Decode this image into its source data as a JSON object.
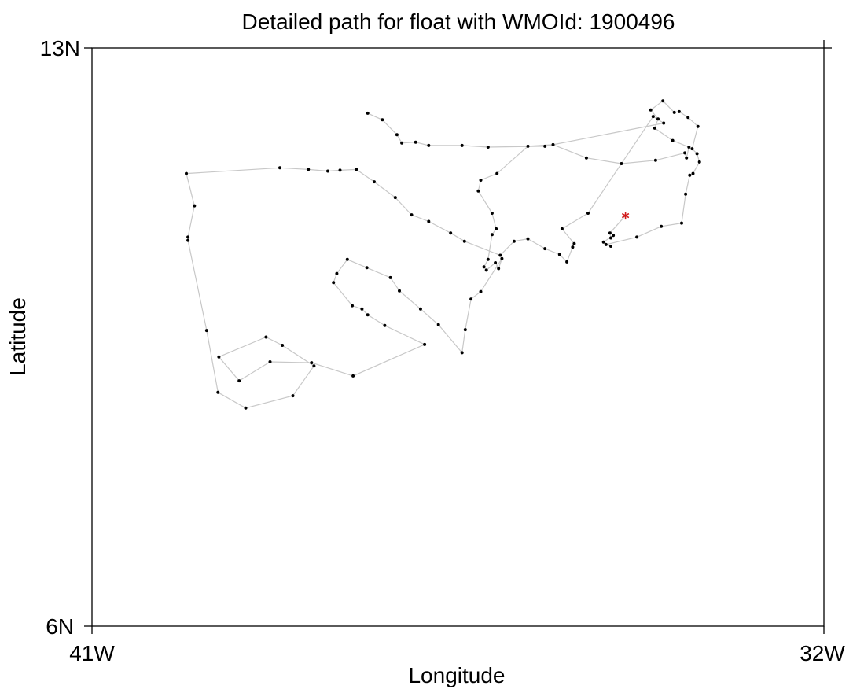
{
  "chart_data": {
    "type": "scatter",
    "title": "Detailed path for float with WMOId: 1900496",
    "xlabel": "Longitude",
    "ylabel": "Latitude",
    "xlim": [
      -41,
      -32
    ],
    "ylim": [
      6,
      13
    ],
    "x_tick_labels": [
      {
        "value": -41,
        "label": "41W"
      },
      {
        "value": -32,
        "label": "32W"
      }
    ],
    "y_tick_labels": [
      {
        "value": 13,
        "label": "13N"
      },
      {
        "value": 6,
        "label": "6N"
      }
    ],
    "grid": false,
    "legend": null,
    "colors": {
      "path": "#c8c8c8",
      "points": "#000000",
      "start_marker": "#d11a1a"
    },
    "start_marker": "asterisk",
    "path": [
      [
        -34.44,
        10.97
      ],
      [
        -34.63,
        10.76
      ],
      [
        -34.62,
        10.7
      ],
      [
        -34.59,
        10.73
      ],
      [
        -34.71,
        10.65
      ],
      [
        -34.62,
        10.6
      ],
      [
        -34.68,
        10.62
      ],
      [
        -34.3,
        10.71
      ],
      [
        -34.0,
        10.84
      ],
      [
        -33.75,
        10.88
      ],
      [
        -33.7,
        11.23
      ],
      [
        -33.65,
        11.46
      ],
      [
        -33.61,
        11.48
      ],
      [
        -33.53,
        11.62
      ],
      [
        -33.56,
        11.72
      ],
      [
        -33.62,
        11.78
      ],
      [
        -33.55,
        12.05
      ],
      [
        -33.67,
        12.16
      ],
      [
        -33.78,
        12.23
      ],
      [
        -33.84,
        12.22
      ],
      [
        -33.98,
        12.36
      ],
      [
        -34.13,
        12.25
      ],
      [
        -34.04,
        12.14
      ],
      [
        -34.08,
        12.03
      ],
      [
        -33.86,
        11.88
      ],
      [
        -33.66,
        11.8
      ],
      [
        -33.69,
        11.67
      ],
      [
        -33.71,
        11.73
      ],
      [
        -34.07,
        11.64
      ],
      [
        -34.49,
        11.6
      ],
      [
        -34.92,
        11.67
      ],
      [
        -35.33,
        11.83
      ],
      [
        -35.64,
        11.81
      ],
      [
        -36.02,
        11.48
      ],
      [
        -36.22,
        11.4
      ],
      [
        -36.25,
        11.27
      ],
      [
        -36.08,
        11.0
      ],
      [
        -36.03,
        10.81
      ],
      [
        -36.08,
        10.74
      ],
      [
        -36.13,
        10.44
      ],
      [
        -36.18,
        10.35
      ],
      [
        -36.15,
        10.31
      ],
      [
        -36.04,
        10.4
      ],
      [
        -36.0,
        10.33
      ],
      [
        -35.96,
        10.45
      ],
      [
        -36.22,
        10.05
      ],
      [
        -36.34,
        9.96
      ],
      [
        -36.41,
        9.59
      ],
      [
        -36.45,
        9.31
      ],
      [
        -36.74,
        9.65
      ],
      [
        -36.96,
        9.84
      ],
      [
        -37.22,
        10.06
      ],
      [
        -37.33,
        10.22
      ],
      [
        -37.62,
        10.34
      ],
      [
        -37.86,
        10.44
      ],
      [
        -37.99,
        10.27
      ],
      [
        -38.03,
        10.16
      ],
      [
        -37.8,
        9.88
      ],
      [
        -37.68,
        9.84
      ],
      [
        -37.61,
        9.77
      ],
      [
        -37.4,
        9.64
      ],
      [
        -36.91,
        9.41
      ],
      [
        -37.79,
        9.03
      ],
      [
        -38.3,
        9.19
      ],
      [
        -38.81,
        9.2
      ],
      [
        -39.19,
        8.97
      ],
      [
        -39.44,
        9.26
      ],
      [
        -38.86,
        9.5
      ],
      [
        -38.66,
        9.4
      ],
      [
        -38.27,
        9.15
      ],
      [
        -38.53,
        8.79
      ],
      [
        -39.11,
        8.64
      ],
      [
        -39.45,
        8.83
      ],
      [
        -39.59,
        9.58
      ],
      [
        -39.82,
        10.67
      ],
      [
        -39.82,
        10.71
      ],
      [
        -39.74,
        11.09
      ],
      [
        -39.84,
        11.48
      ],
      [
        -38.69,
        11.55
      ],
      [
        -38.34,
        11.53
      ],
      [
        -38.1,
        11.51
      ],
      [
        -37.95,
        11.52
      ],
      [
        -37.75,
        11.53
      ],
      [
        -37.53,
        11.38
      ],
      [
        -37.27,
        11.19
      ],
      [
        -37.07,
        10.98
      ],
      [
        -36.86,
        10.9
      ],
      [
        -36.59,
        10.76
      ],
      [
        -36.42,
        10.66
      ],
      [
        -35.98,
        10.49
      ],
      [
        -35.81,
        10.66
      ],
      [
        -35.64,
        10.69
      ],
      [
        -35.43,
        10.57
      ],
      [
        -35.25,
        10.5
      ],
      [
        -35.16,
        10.41
      ],
      [
        -35.09,
        10.59
      ],
      [
        -35.07,
        10.63
      ],
      [
        -35.22,
        10.81
      ],
      [
        -34.9,
        11.0
      ],
      [
        -34.1,
        12.17
      ],
      [
        -33.97,
        12.09
      ],
      [
        -35.43,
        11.81
      ],
      [
        -36.13,
        11.8
      ],
      [
        -36.45,
        11.82
      ],
      [
        -36.86,
        11.82
      ],
      [
        -37.02,
        11.86
      ],
      [
        -37.19,
        11.85
      ],
      [
        -37.25,
        11.95
      ],
      [
        -37.43,
        12.13
      ],
      [
        -37.61,
        12.21
      ]
    ]
  }
}
